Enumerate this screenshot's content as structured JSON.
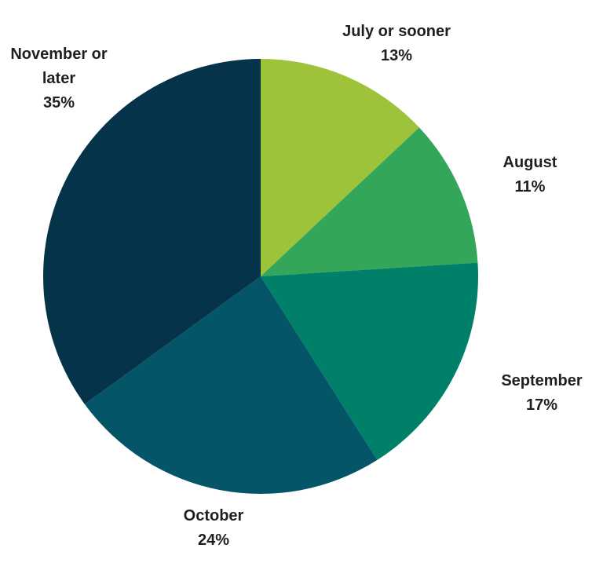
{
  "chart_data": {
    "type": "pie",
    "categories": [
      "July or sooner",
      "August",
      "September",
      "October",
      "November or later"
    ],
    "values": [
      13,
      11,
      17,
      24,
      35
    ],
    "value_labels": [
      "13%",
      "11%",
      "17%",
      "24%",
      "35%"
    ],
    "colors": [
      "#9dc33b",
      "#33a65a",
      "#008068",
      "#045568",
      "#04334a"
    ]
  }
}
